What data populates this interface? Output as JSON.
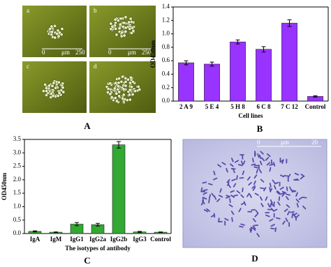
{
  "figure_labels": [
    "A",
    "B",
    "C",
    "D"
  ],
  "micrograph_labels": [
    "a",
    "b",
    "c",
    "d"
  ],
  "scale_bars": [
    {
      "texts": [
        "0",
        "μm",
        "250"
      ]
    },
    {
      "texts": [
        "0",
        "μm",
        "250"
      ]
    },
    {
      "texts": [
        "0",
        "μm",
        "20"
      ]
    }
  ],
  "chart_data": [
    {
      "type": "bar",
      "x_label": "Cell lines",
      "y_label": "OD450nm",
      "categories": [
        "2 A 9",
        "5 E 4",
        "5 H 8",
        "6 C 8",
        "7 C 12",
        "Control"
      ],
      "values": [
        0.57,
        0.55,
        0.88,
        0.77,
        1.16,
        0.07
      ],
      "errors": [
        0.03,
        0.03,
        0.03,
        0.04,
        0.05,
        0.01
      ],
      "color": "#9933ff",
      "ylim": [
        0,
        1.4
      ],
      "yticks": [
        {
          "value": 0,
          "label": "0.0"
        },
        0.2,
        0.4,
        0.6,
        0.8,
        {
          "value": 1,
          "label": "1.0"
        },
        1.2,
        1.4
      ]
    },
    {
      "type": "bar",
      "x_label": "The isotypes of antibody",
      "y_label": "OD450nm",
      "categories": [
        "IgA",
        "IgM",
        "IgG1",
        "IgG2a",
        "IgG2b",
        "IgG3",
        "Control"
      ],
      "values": [
        0.08,
        0.05,
        0.35,
        0.33,
        3.3,
        0.06,
        0.05
      ],
      "errors": [
        0.02,
        0.01,
        0.06,
        0.05,
        0.12,
        0.02,
        0.01
      ],
      "color": "#33a833",
      "ylim": [
        0,
        3.5
      ],
      "yticks": [
        {
          "value": 0,
          "label": "0.0"
        },
        0.5,
        {
          "value": 1,
          "label": "1.0"
        },
        1.5,
        {
          "value": 2,
          "label": "2.0"
        },
        2.5,
        {
          "value": 3,
          "label": "3.0"
        },
        3.5
      ]
    }
  ]
}
